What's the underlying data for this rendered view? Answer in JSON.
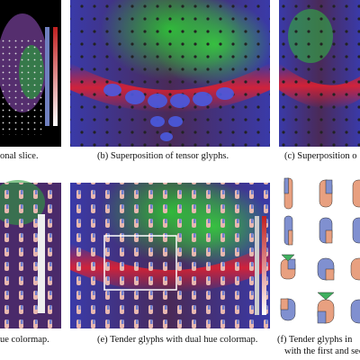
{
  "figure": {
    "panels": [
      {
        "caption": "onal slice."
      },
      {
        "caption": "(b) Superposition of tensor glyphs."
      },
      {
        "caption": "(c) Superposition o"
      },
      {
        "caption": "ue colormap."
      },
      {
        "caption": "(e) Tender glyphs with dual hue colormap."
      },
      {
        "caption": [
          "(f) Tender glyphs in",
          "with the first and sec"
        ]
      }
    ]
  }
}
